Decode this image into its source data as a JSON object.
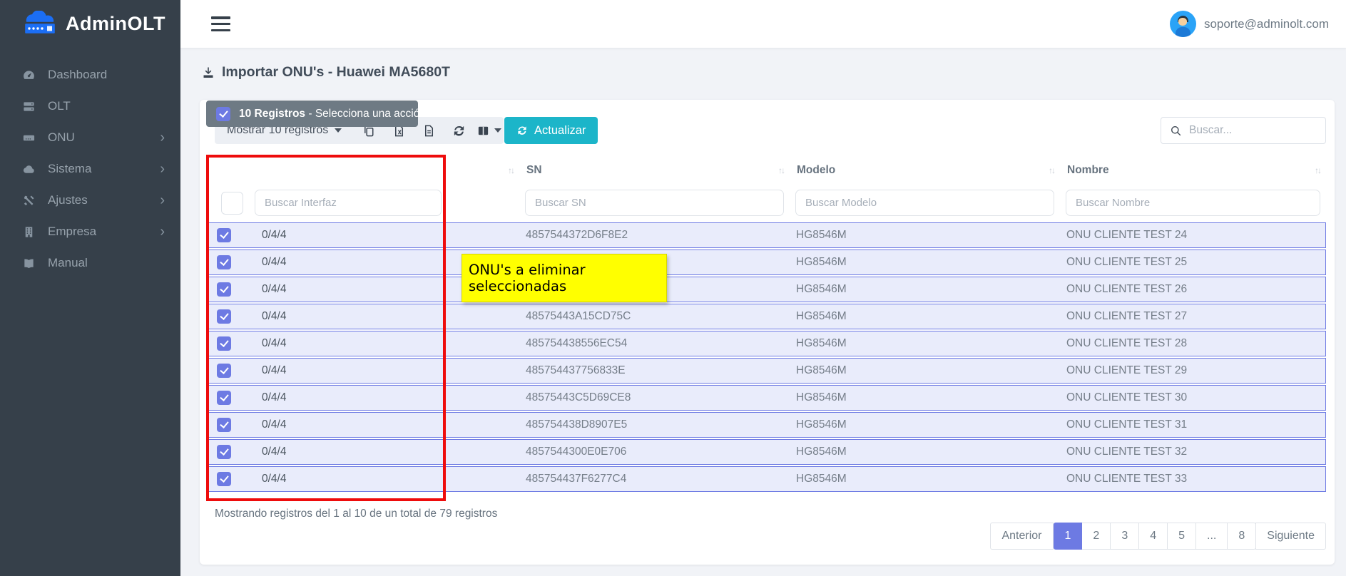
{
  "app": {
    "name": "AdminOLT",
    "user_email": "soporte@adminolt.com"
  },
  "sidebar": {
    "items": [
      {
        "label": "Dashboard",
        "icon": "gauge",
        "has_submenu": false
      },
      {
        "label": "OLT",
        "icon": "server",
        "has_submenu": false
      },
      {
        "label": "ONU",
        "icon": "device",
        "has_submenu": true
      },
      {
        "label": "Sistema",
        "icon": "cloud",
        "has_submenu": true
      },
      {
        "label": "Ajustes",
        "icon": "tools",
        "has_submenu": true
      },
      {
        "label": "Empresa",
        "icon": "building",
        "has_submenu": true
      },
      {
        "label": "Manual",
        "icon": "book",
        "has_submenu": false
      }
    ]
  },
  "page": {
    "title": "Importar ONU's - Huawei MA5680T"
  },
  "toolbar": {
    "show_records_label": "Mostrar 10 registros",
    "refresh_label": "Actualizar",
    "search_placeholder": "Buscar...",
    "icons": [
      "copy",
      "excel",
      "file",
      "refresh",
      "columns"
    ]
  },
  "table": {
    "action_bar": {
      "selected_label": "10 Registros",
      "action_label": "- Selecciona una acción"
    },
    "columns": [
      {
        "label": "",
        "filter_placeholder": "Buscar Interfaz"
      },
      {
        "label": "SN",
        "filter_placeholder": "Buscar SN"
      },
      {
        "label": "Modelo",
        "filter_placeholder": "Buscar Modelo"
      },
      {
        "label": "Nombre",
        "filter_placeholder": "Buscar Nombre"
      }
    ],
    "rows": [
      {
        "checked": true,
        "interfaz": "0/4/4",
        "sn": "4857544372D6F8E2",
        "modelo": "HG8546M",
        "nombre": "ONU CLIENTE TEST 24"
      },
      {
        "checked": true,
        "interfaz": "0/4/4",
        "sn": "",
        "modelo": "HG8546M",
        "nombre": "ONU CLIENTE TEST 25"
      },
      {
        "checked": true,
        "interfaz": "0/4/4",
        "sn": "",
        "modelo": "HG8546M",
        "nombre": "ONU CLIENTE TEST 26"
      },
      {
        "checked": true,
        "interfaz": "0/4/4",
        "sn": "48575443A15CD75C",
        "modelo": "HG8546M",
        "nombre": "ONU CLIENTE TEST 27"
      },
      {
        "checked": true,
        "interfaz": "0/4/4",
        "sn": "485754438556EC54",
        "modelo": "HG8546M",
        "nombre": "ONU CLIENTE TEST 28"
      },
      {
        "checked": true,
        "interfaz": "0/4/4",
        "sn": "485754437756833E",
        "modelo": "HG8546M",
        "nombre": "ONU CLIENTE TEST 29"
      },
      {
        "checked": true,
        "interfaz": "0/4/4",
        "sn": "48575443C5D69CE8",
        "modelo": "HG8546M",
        "nombre": "ONU CLIENTE TEST 30"
      },
      {
        "checked": true,
        "interfaz": "0/4/4",
        "sn": "485754438D8907E5",
        "modelo": "HG8546M",
        "nombre": "ONU CLIENTE TEST 31"
      },
      {
        "checked": true,
        "interfaz": "0/4/4",
        "sn": "4857544300E0E706",
        "modelo": "HG8546M",
        "nombre": "ONU CLIENTE TEST 32"
      },
      {
        "checked": true,
        "interfaz": "0/4/4",
        "sn": "485754437F6277C4",
        "modelo": "HG8546M",
        "nombre": "ONU CLIENTE TEST 33"
      }
    ]
  },
  "footer": {
    "info": "Mostrando registros del 1 al 10 de un total de 79 registros"
  },
  "pagination": {
    "prev_label": "Anterior",
    "next_label": "Siguiente",
    "pages": [
      "1",
      "2",
      "3",
      "4",
      "5",
      "...",
      "8"
    ],
    "active_page": "1"
  },
  "annotations": {
    "tooltip_text": "ONU's a eliminar seleccionadas"
  },
  "colors": {
    "sidebar_bg": "#36404a",
    "accent_indigo": "#6d7ae3",
    "accent_cyan": "#1cb5c9",
    "row_bg": "#e9ecfb",
    "annotation_red": "#ee0c0c",
    "tooltip_yellow": "#ffff00",
    "logo_blue": "#1b6ef5"
  }
}
